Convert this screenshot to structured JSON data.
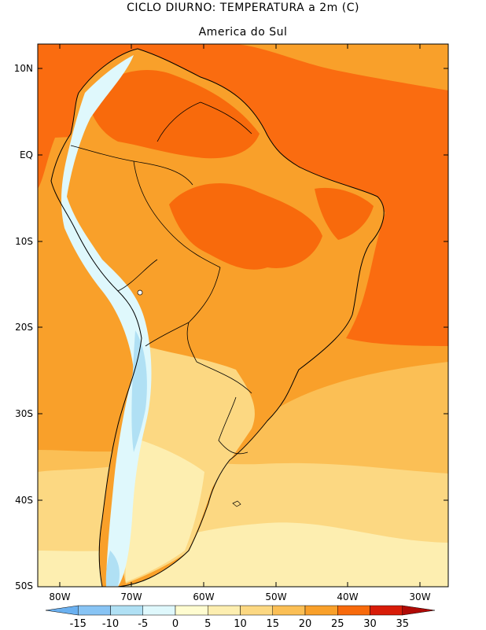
{
  "title": "CICLO DIURNO: TEMPERATURA a 2m (C)",
  "subtitle": "America do Sul",
  "y_ticks": [
    "10N",
    "EQ",
    "10S",
    "20S",
    "30S",
    "40S",
    "50S"
  ],
  "x_ticks": [
    "80W",
    "70W",
    "60W",
    "50W",
    "40W",
    "30W"
  ],
  "colorbar": {
    "labels": [
      "-15",
      "-10",
      "-5",
      "0",
      "5",
      "10",
      "15",
      "20",
      "25",
      "30",
      "35"
    ],
    "colors": [
      "#6ab0f0",
      "#88c4f4",
      "#b0e0f4",
      "#dff8fc",
      "#fffcd0",
      "#fdeeb0",
      "#fcd882",
      "#fbbf55",
      "#f9a02a",
      "#f86a0c",
      "#d81c08",
      "#b00a06"
    ]
  },
  "map_colors": {
    "ocean_north": "#fa6c10",
    "ocean_mid": "#f9a02a",
    "ocean_south1": "#fbbf55",
    "ocean_south2": "#fcd882",
    "ocean_south3": "#fdeeb0",
    "land_warm": "#f9a02a",
    "land_hot": "#f86a0c",
    "andes_cold": "#dff8fc",
    "andes_colder": "#b0e0f4",
    "coastline": "#000000"
  }
}
